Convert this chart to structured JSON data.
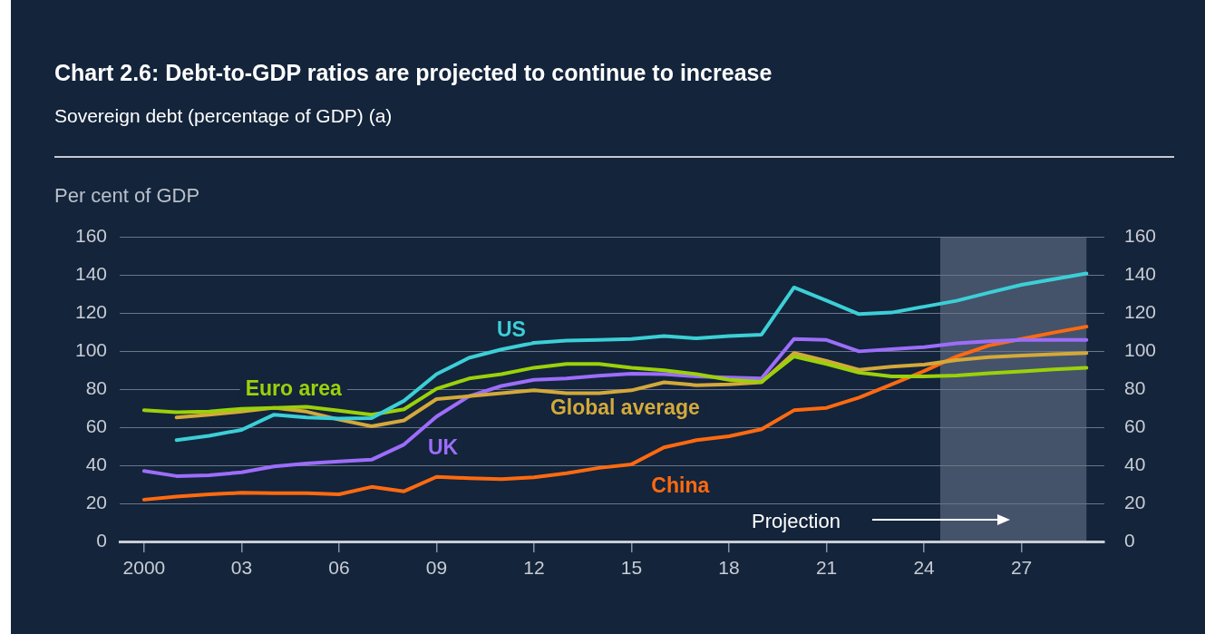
{
  "chart_data": {
    "type": "line",
    "title": "Chart 2.6: Debt-to-GDP ratios are projected to continue to increase",
    "subtitle": "Sovereign debt (percentage of GDP) (a)",
    "ylabel": "Per cent of GDP",
    "x": [
      2000,
      2001,
      2002,
      2003,
      2004,
      2005,
      2006,
      2007,
      2008,
      2009,
      2010,
      2011,
      2012,
      2013,
      2014,
      2015,
      2016,
      2017,
      2018,
      2019,
      2020,
      2021,
      2022,
      2023,
      2024,
      2025,
      2026,
      2027,
      2028,
      2029
    ],
    "series": [
      {
        "name": "US",
        "color": "#3ccfd6",
        "values": [
          null,
          53.3,
          55.6,
          58.7,
          66.7,
          65.2,
          64.6,
          64.9,
          74,
          88,
          96.6,
          101,
          104.5,
          105.7,
          106,
          106.5,
          108,
          106.8,
          108,
          108.8,
          133.6,
          126.7,
          119.6,
          120.4,
          123.5,
          126.6,
          130.9,
          135,
          138,
          141
        ]
      },
      {
        "name": "Euro area",
        "color": "#9bd10a",
        "values": [
          69,
          68,
          68.3,
          69.8,
          70.3,
          70.8,
          68.8,
          66.7,
          69.5,
          80.3,
          85.7,
          88,
          91.4,
          93.4,
          93.4,
          91.4,
          90,
          88,
          85,
          84,
          97.3,
          93.4,
          88.8,
          86.8,
          86.8,
          87.3,
          88.5,
          89.5,
          90.5,
          91.4
        ]
      },
      {
        "name": "Global average",
        "color": "#d4a93a",
        "values": [
          null,
          65.2,
          66.7,
          68.3,
          70.3,
          68.3,
          64.1,
          60.6,
          63.7,
          74.9,
          76.4,
          78,
          79.5,
          78,
          78,
          79.5,
          83.7,
          82.2,
          82.6,
          83.7,
          99.1,
          95,
          90.3,
          91.9,
          93,
          95.4,
          97,
          97.8,
          98.5,
          99.1
        ]
      },
      {
        "name": "UK",
        "color": "#9d6dfa",
        "values": [
          37.1,
          34.4,
          34.8,
          36.4,
          39.5,
          41,
          42.1,
          43,
          51,
          65.7,
          76.4,
          81.8,
          85,
          85.7,
          87.2,
          88.3,
          88,
          86.8,
          86.2,
          85.7,
          106.5,
          106,
          100,
          101.1,
          102.2,
          104.2,
          105.3,
          106,
          106,
          106
        ]
      },
      {
        "name": "China",
        "color": "#ff6a10",
        "values": [
          22,
          23.6,
          24.8,
          25.6,
          25.4,
          25.4,
          24.8,
          28.7,
          26.4,
          34,
          33.3,
          32.8,
          33.8,
          35.9,
          38.7,
          40.6,
          49.5,
          53.3,
          55.3,
          59,
          69,
          70.3,
          75.7,
          82.6,
          89.6,
          97.3,
          103.1,
          106.5,
          109.9,
          113
        ]
      }
    ],
    "xlim": [
      1999.25,
      2029.55
    ],
    "xticks": [
      {
        "value": 2000,
        "label": "2000"
      },
      {
        "value": 2003,
        "label": "03"
      },
      {
        "value": 2006,
        "label": "06"
      },
      {
        "value": 2009,
        "label": "09"
      },
      {
        "value": 2012,
        "label": "12"
      },
      {
        "value": 2015,
        "label": "15"
      },
      {
        "value": 2018,
        "label": "18"
      },
      {
        "value": 2021,
        "label": "21"
      },
      {
        "value": 2024,
        "label": "24"
      },
      {
        "value": 2027,
        "label": "27"
      }
    ],
    "ylim": [
      0,
      160
    ],
    "yticks": [
      0,
      20,
      40,
      60,
      80,
      100,
      120,
      140,
      160
    ],
    "y2lim": [
      0,
      160
    ],
    "y2ticks": [
      0,
      20,
      40,
      60,
      80,
      100,
      120,
      140,
      160
    ],
    "bands": [
      {
        "axis": "x",
        "from": 2024.5,
        "to": 2029,
        "color": "#44536a"
      }
    ],
    "annotations": [
      "Projection"
    ],
    "grid": "y",
    "legend": false,
    "marker": "none",
    "line_style": "solid"
  }
}
